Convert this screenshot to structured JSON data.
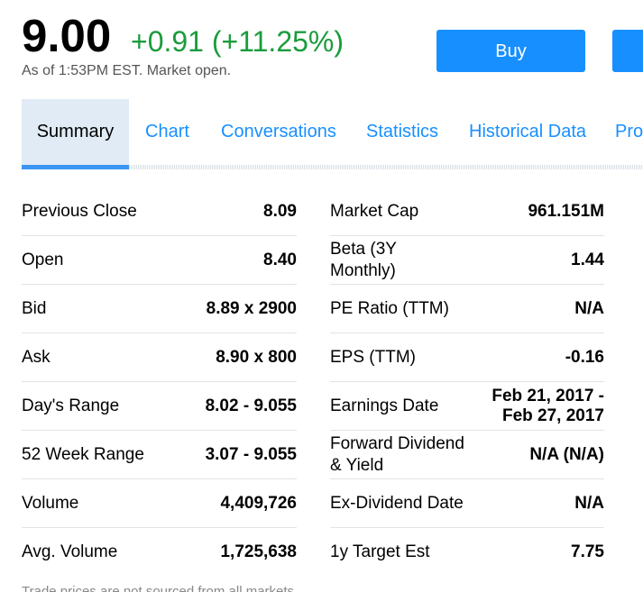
{
  "quote": {
    "price": "9.00",
    "change": "+0.91 (+11.25%)",
    "as_of": "As of 1:53PM EST. Market open."
  },
  "actions": {
    "buy_label": "Buy",
    "sell_label": ""
  },
  "tabs": [
    {
      "label": "Summary"
    },
    {
      "label": "Chart"
    },
    {
      "label": "Conversations"
    },
    {
      "label": "Statistics"
    },
    {
      "label": "Historical Data"
    },
    {
      "label": "Pro"
    }
  ],
  "left_table": [
    {
      "label": "Previous Close",
      "value": "8.09"
    },
    {
      "label": "Open",
      "value": "8.40"
    },
    {
      "label": "Bid",
      "value": "8.89 x 2900"
    },
    {
      "label": "Ask",
      "value": "8.90 x 800"
    },
    {
      "label": "Day's Range",
      "value": "8.02 - 9.055"
    },
    {
      "label": "52 Week Range",
      "value": "3.07 - 9.055"
    },
    {
      "label": "Volume",
      "value": "4,409,726"
    },
    {
      "label": "Avg. Volume",
      "value": "1,725,638"
    }
  ],
  "right_table": [
    {
      "label": "Market Cap",
      "value": "961.151M"
    },
    {
      "label": "Beta (3Y Monthly)",
      "value": "1.44"
    },
    {
      "label": "PE Ratio (TTM)",
      "value": "N/A"
    },
    {
      "label": "EPS (TTM)",
      "value": "-0.16"
    },
    {
      "label": "Earnings Date",
      "value": "Feb 21, 2017 - Feb 27, 2017"
    },
    {
      "label": "Forward Dividend & Yield",
      "value": "N/A (N/A)"
    },
    {
      "label": "Ex-Dividend Date",
      "value": "N/A"
    },
    {
      "label": "1y Target Est",
      "value": "7.75"
    }
  ],
  "footnote": "Trade prices are not sourced from all markets",
  "colors": {
    "positive": "#1a9c3c",
    "accent": "#188fff",
    "active_tab_bg": "#e1ebf5"
  }
}
